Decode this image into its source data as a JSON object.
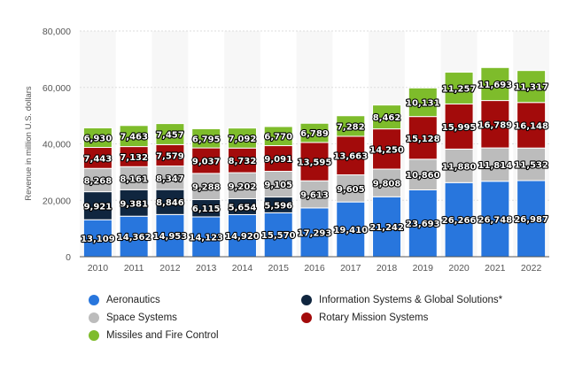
{
  "chart_data": {
    "type": "bar",
    "stacked": true,
    "title": "",
    "xlabel": "",
    "ylabel": "Revenue in million U.S. dollars",
    "ylim": [
      0,
      80000
    ],
    "yticks": [
      "0",
      "20,000",
      "40,000",
      "60,000",
      "80,000"
    ],
    "grid": true,
    "legend_position": "bottom",
    "categories": [
      "2010",
      "2011",
      "2012",
      "2013",
      "2014",
      "2015",
      "2016",
      "2017",
      "2018",
      "2019",
      "2020",
      "2021",
      "2022"
    ],
    "series": [
      {
        "name": "Aeronautics",
        "color": "#2876dd",
        "values": [
          13109,
          14362,
          14953,
          14123,
          14920,
          15570,
          17293,
          19410,
          21242,
          23693,
          26266,
          26748,
          26987
        ]
      },
      {
        "name": "Information Systems & Global Solutions*",
        "color": "#10263f",
        "values": [
          9921,
          9381,
          8846,
          6115,
          5654,
          5596,
          0,
          0,
          0,
          0,
          0,
          0,
          0
        ]
      },
      {
        "name": "Space Systems",
        "color": "#bcbcbc",
        "values": [
          8268,
          8161,
          8347,
          9288,
          9202,
          9105,
          9613,
          9605,
          9808,
          10860,
          11880,
          11814,
          11532
        ]
      },
      {
        "name": "Rotary Mission Systems",
        "color": "#a30b0b",
        "values": [
          7443,
          7132,
          7579,
          9037,
          8732,
          9091,
          13595,
          13663,
          14250,
          15128,
          15995,
          16789,
          16148
        ]
      },
      {
        "name": "Missiles and Fire Control",
        "color": "#7ebc2b",
        "values": [
          6930,
          7463,
          7457,
          6795,
          7092,
          6770,
          6789,
          7282,
          8462,
          10131,
          11257,
          11693,
          11317
        ]
      }
    ],
    "legend_order": [
      0,
      1,
      2,
      3,
      4
    ]
  }
}
